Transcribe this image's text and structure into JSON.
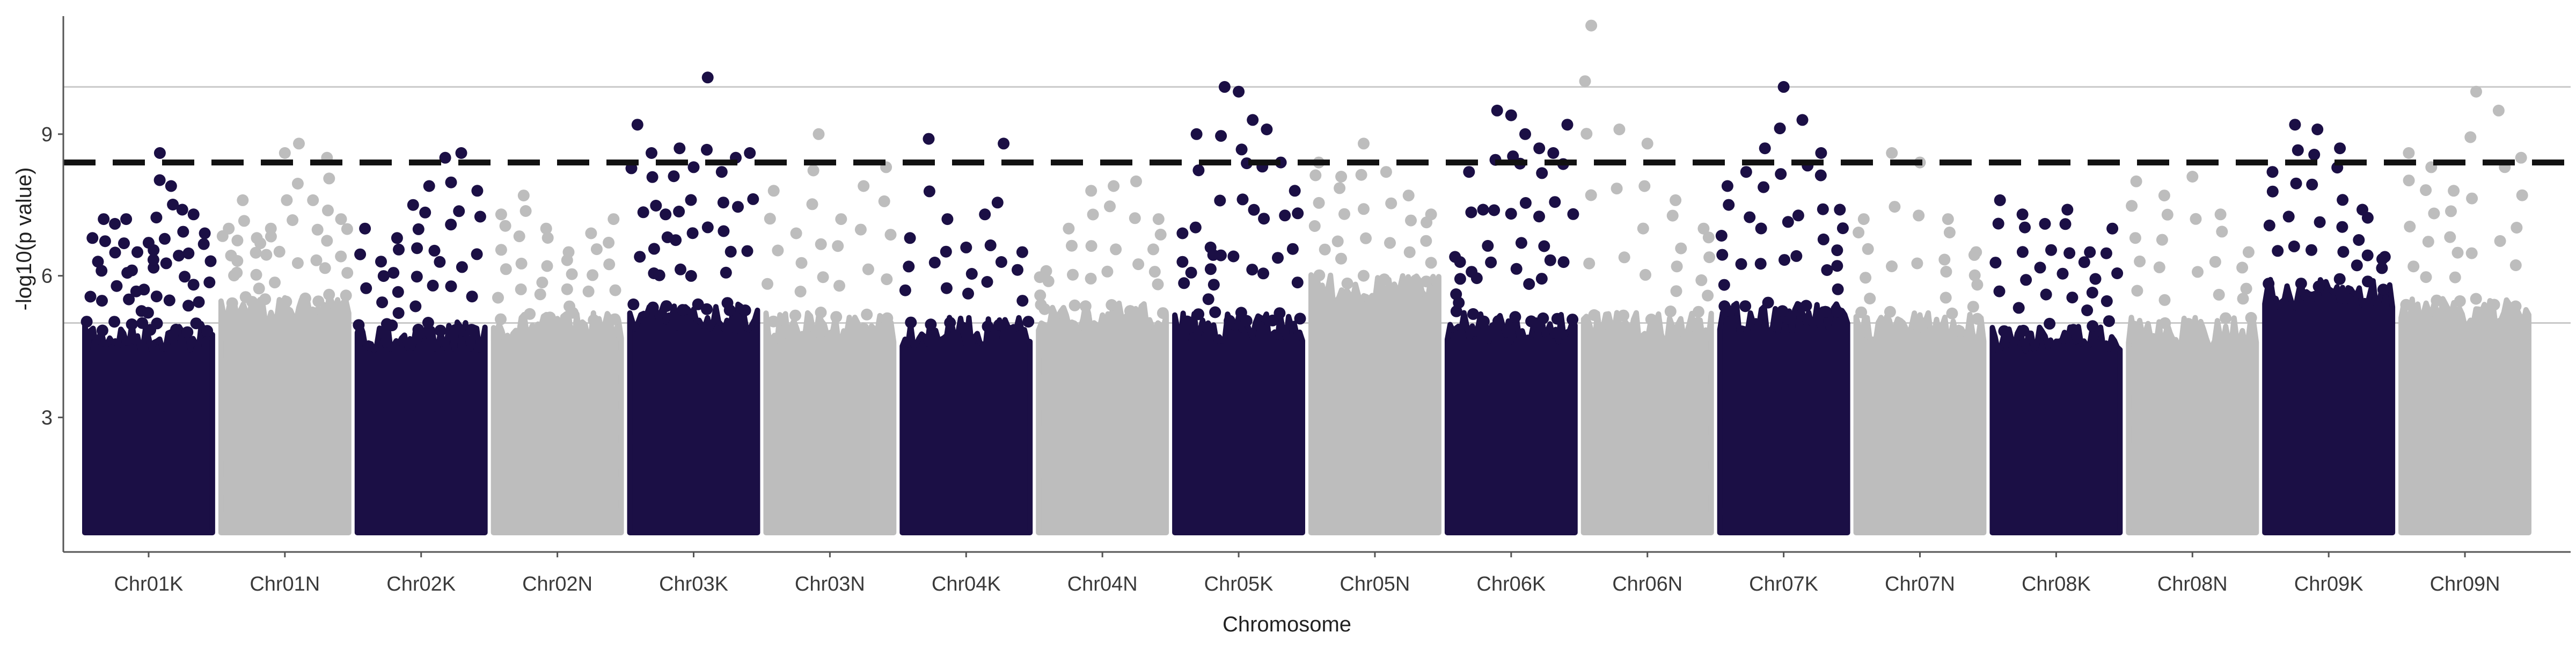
{
  "chart_data": {
    "type": "scatter",
    "title": "",
    "xlabel": "Chromosome",
    "ylabel": "-log10(p value)",
    "categories": [
      "Chr01K",
      "Chr01N",
      "Chr02K",
      "Chr02N",
      "Chr03K",
      "Chr03N",
      "Chr04K",
      "Chr04N",
      "Chr05K",
      "Chr05N",
      "Chr06K",
      "Chr06N",
      "Chr07K",
      "Chr07N",
      "Chr08K",
      "Chr08N",
      "Chr09K",
      "Chr09N"
    ],
    "yticks": [
      "3",
      "6",
      "9"
    ],
    "ylim": [
      0.15,
      11.5
    ],
    "grid": "two horizontal reference lines",
    "reference_lines": {
      "suggestive": 5.0,
      "genomewide": 10.0,
      "significance_dashed": 8.4
    },
    "colors": {
      "dark": "#1b0f45",
      "light": "#bdbdbd",
      "threshold": "#111111",
      "refline": "#c8c8c8",
      "axis": "#555555"
    },
    "series": [
      {
        "color": "dark",
        "band_top": 4.8,
        "max_values": [
          6.8,
          7.2,
          7.1,
          7.2,
          6.5,
          6.7,
          8.6,
          7.9,
          7.4,
          7.3,
          6.9
        ]
      },
      {
        "color": "light",
        "band_top": 5.4,
        "max_values": [
          7.0,
          7.6,
          6.8,
          7.0,
          8.6,
          8.8,
          7.6,
          8.5,
          7.2
        ]
      },
      {
        "color": "dark",
        "band_top": 4.8,
        "max_values": [
          7.0,
          6.3,
          6.8,
          7.5,
          7.9,
          8.5,
          8.6,
          7.8
        ]
      },
      {
        "color": "light",
        "band_top": 5.0,
        "max_values": [
          7.3,
          7.7,
          7.0,
          6.5,
          6.9,
          7.2
        ]
      },
      {
        "color": "dark",
        "band_top": 5.2,
        "max_values": [
          9.2,
          8.6,
          7.3,
          8.7,
          8.3,
          10.2,
          8.2,
          8.5,
          8.6
        ]
      },
      {
        "color": "light",
        "band_top": 5.0,
        "max_values": [
          7.8,
          6.9,
          9.0,
          7.2,
          7.9,
          8.3
        ]
      },
      {
        "color": "dark",
        "band_top": 4.9,
        "max_values": [
          6.8,
          8.9,
          7.2,
          6.6,
          7.3,
          8.8,
          6.5
        ]
      },
      {
        "color": "light",
        "band_top": 5.2,
        "max_values": [
          6.1,
          7.0,
          7.8,
          7.9,
          8.0,
          7.2
        ]
      },
      {
        "color": "dark",
        "band_top": 5.0,
        "max_values": [
          6.9,
          9.0,
          6.6,
          10.0,
          9.9,
          9.3,
          9.1,
          8.4,
          7.8
        ]
      },
      {
        "color": "light",
        "band_top": 5.8,
        "max_values": [
          8.4,
          8.1,
          8.8,
          8.2,
          7.7,
          7.3
        ]
      },
      {
        "color": "dark",
        "band_top": 5.0,
        "max_values": [
          6.4,
          8.2,
          7.4,
          9.5,
          9.4,
          9.0,
          8.7,
          8.6,
          9.2
        ]
      },
      {
        "color": "light",
        "band_top": 5.0,
        "max_values": [
          11.3,
          9.1,
          8.8,
          7.6,
          7.0
        ]
      },
      {
        "color": "dark",
        "band_top": 5.2,
        "max_values": [
          7.9,
          8.2,
          8.7,
          10.0,
          9.3,
          8.6,
          7.4
        ]
      },
      {
        "color": "light",
        "band_top": 5.0,
        "max_values": [
          7.2,
          8.6,
          8.4,
          7.2,
          6.5
        ]
      },
      {
        "color": "dark",
        "band_top": 4.8,
        "max_values": [
          7.6,
          7.3,
          7.1,
          7.4,
          6.5,
          7.0
        ]
      },
      {
        "color": "light",
        "band_top": 4.9,
        "max_values": [
          8.0,
          7.7,
          8.1,
          7.3,
          6.5
        ]
      },
      {
        "color": "dark",
        "band_top": 5.7,
        "max_values": [
          8.2,
          9.2,
          9.1,
          8.7,
          7.4,
          6.4
        ]
      },
      {
        "color": "light",
        "band_top": 5.3,
        "max_values": [
          8.6,
          8.3,
          7.8,
          9.9,
          9.5,
          8.5
        ]
      }
    ]
  }
}
